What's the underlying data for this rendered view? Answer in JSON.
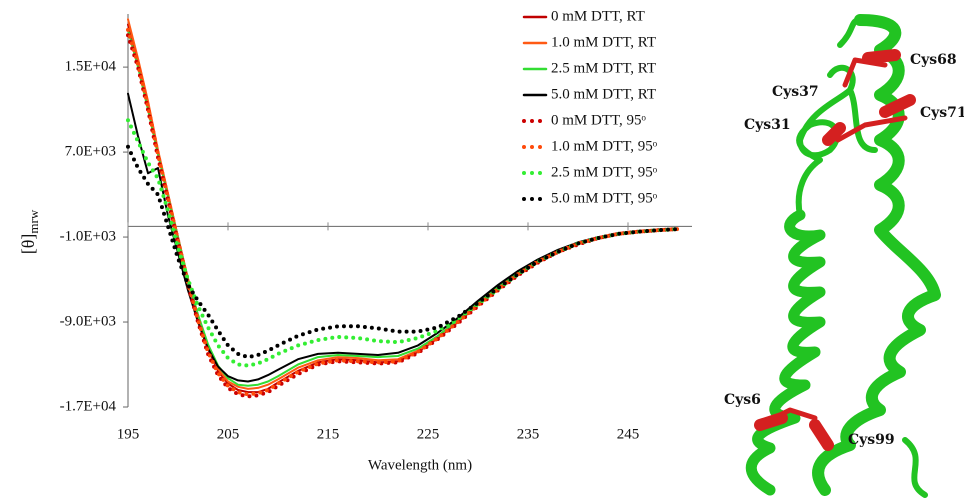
{
  "chart_data": {
    "type": "line",
    "xlabel": "Wavelength (nm)",
    "ylabel": "[θ]",
    "ylabel_subscript": "mrw",
    "x": [
      195,
      196,
      197,
      198,
      199,
      200,
      201,
      202,
      203,
      204,
      205,
      206,
      207,
      208,
      209,
      210,
      212,
      214,
      216,
      218,
      220,
      222,
      224,
      226,
      228,
      230,
      232,
      234,
      236,
      238,
      240,
      242,
      244,
      246,
      248,
      250
    ],
    "xlim": [
      195,
      250
    ],
    "xticks": [
      195,
      205,
      215,
      225,
      235,
      245
    ],
    "ylim": [
      -17000,
      20000
    ],
    "yticks": [
      {
        "value": 15000,
        "label": "1.5E+04"
      },
      {
        "value": 7000,
        "label": "7.0E+03"
      },
      {
        "value": -1000,
        "label": "-1.0E+03"
      },
      {
        "value": -9000,
        "label": "-9.0E+03"
      },
      {
        "value": -17000,
        "label": "-1.7E+04"
      }
    ],
    "legend": "top-right",
    "series": [
      {
        "name": "0 mM DTT, RT",
        "color": "#c00000",
        "style": "solid",
        "values": [
          19000,
          15500,
          11500,
          7000,
          3000,
          -1000,
          -5000,
          -8500,
          -11500,
          -13600,
          -14800,
          -15400,
          -15600,
          -15600,
          -15300,
          -14700,
          -13600,
          -12800,
          -12500,
          -12600,
          -12800,
          -12700,
          -11800,
          -10500,
          -9000,
          -7400,
          -5900,
          -4500,
          -3300,
          -2300,
          -1600,
          -1100,
          -700,
          -500,
          -350,
          -250
        ]
      },
      {
        "name": "1.0 mM DTT, RT",
        "color": "#ff5a14",
        "style": "solid",
        "values": [
          19500,
          15800,
          11800,
          7200,
          3100,
          -1000,
          -4900,
          -8400,
          -11300,
          -13400,
          -14600,
          -15100,
          -15300,
          -15200,
          -14900,
          -14400,
          -13300,
          -12600,
          -12300,
          -12400,
          -12600,
          -12500,
          -11700,
          -10400,
          -8900,
          -7300,
          -5800,
          -4400,
          -3200,
          -2300,
          -1600,
          -1100,
          -700,
          -500,
          -350,
          -250
        ]
      },
      {
        "name": "2.5 mM DTT, RT",
        "color": "#33dd33",
        "style": "solid",
        "values": [
          18500,
          15000,
          11000,
          6800,
          2800,
          -1100,
          -5000,
          -8300,
          -11100,
          -13100,
          -14300,
          -14900,
          -15000,
          -14900,
          -14600,
          -14100,
          -13000,
          -12300,
          -12100,
          -12200,
          -12300,
          -12200,
          -11500,
          -10300,
          -8800,
          -7200,
          -5700,
          -4300,
          -3200,
          -2300,
          -1600,
          -1100,
          -700,
          -500,
          -350,
          -250
        ]
      },
      {
        "name": "5.0 mM DTT, RT",
        "color": "#000000",
        "style": "solid",
        "values": [
          12500,
          8500,
          5000,
          5500,
          1000,
          -2500,
          -6000,
          -9000,
          -11500,
          -13200,
          -14100,
          -14500,
          -14600,
          -14400,
          -14000,
          -13500,
          -12500,
          -12000,
          -11900,
          -12000,
          -12100,
          -11900,
          -11200,
          -10000,
          -8600,
          -7000,
          -5500,
          -4200,
          -3100,
          -2200,
          -1500,
          -1000,
          -700,
          -500,
          -350,
          -250
        ]
      },
      {
        "name": "0 mM DTT, 95ᵒ",
        "color": "#cc0000",
        "style": "dotted",
        "values": [
          18000,
          15000,
          11000,
          6500,
          2500,
          -1500,
          -5500,
          -9000,
          -12000,
          -14000,
          -15200,
          -15800,
          -16000,
          -15900,
          -15600,
          -15000,
          -13900,
          -13000,
          -12700,
          -12800,
          -12900,
          -12800,
          -11900,
          -10600,
          -9100,
          -7500,
          -6000,
          -4600,
          -3400,
          -2400,
          -1700,
          -1100,
          -700,
          -500,
          -350,
          -250
        ]
      },
      {
        "name": "1.0 mM DTT, 95ᵒ",
        "color": "#ff4a0a",
        "style": "dotted",
        "values": [
          18500,
          15300,
          11300,
          6800,
          2700,
          -1300,
          -5300,
          -8800,
          -11800,
          -13800,
          -15000,
          -15600,
          -15800,
          -15700,
          -15400,
          -14800,
          -13700,
          -12900,
          -12600,
          -12700,
          -12800,
          -12700,
          -11800,
          -10500,
          -9000,
          -7400,
          -5900,
          -4500,
          -3300,
          -2400,
          -1600,
          -1100,
          -700,
          -500,
          -350,
          -250
        ]
      },
      {
        "name": "2.5 mM DTT, 95ᵒ",
        "color": "#33ee33",
        "style": "dotted",
        "values": [
          10000,
          8000,
          6000,
          4500,
          1500,
          -2000,
          -5000,
          -7500,
          -9500,
          -11200,
          -12400,
          -13000,
          -13100,
          -12900,
          -12500,
          -12000,
          -11200,
          -10700,
          -10400,
          -10500,
          -10800,
          -10900,
          -10500,
          -9800,
          -8700,
          -7300,
          -5900,
          -4500,
          -3300,
          -2400,
          -1600,
          -1100,
          -700,
          -500,
          -350,
          -250
        ]
      },
      {
        "name": "5.0 mM DTT, 95ᵒ",
        "color": "#000000",
        "style": "dotted",
        "values": [
          7500,
          5500,
          4000,
          3000,
          0,
          -3000,
          -5500,
          -7000,
          -8300,
          -9800,
          -11200,
          -12000,
          -12300,
          -12100,
          -11700,
          -11200,
          -10300,
          -9700,
          -9400,
          -9400,
          -9600,
          -9900,
          -9900,
          -9500,
          -8500,
          -7200,
          -5800,
          -4500,
          -3300,
          -2400,
          -1600,
          -1100,
          -700,
          -500,
          -350,
          -250
        ]
      }
    ]
  },
  "structure": {
    "labels": [
      "Cys68",
      "Cys37",
      "Cys71",
      "Cys31",
      "Cys6",
      "Cys99"
    ]
  }
}
